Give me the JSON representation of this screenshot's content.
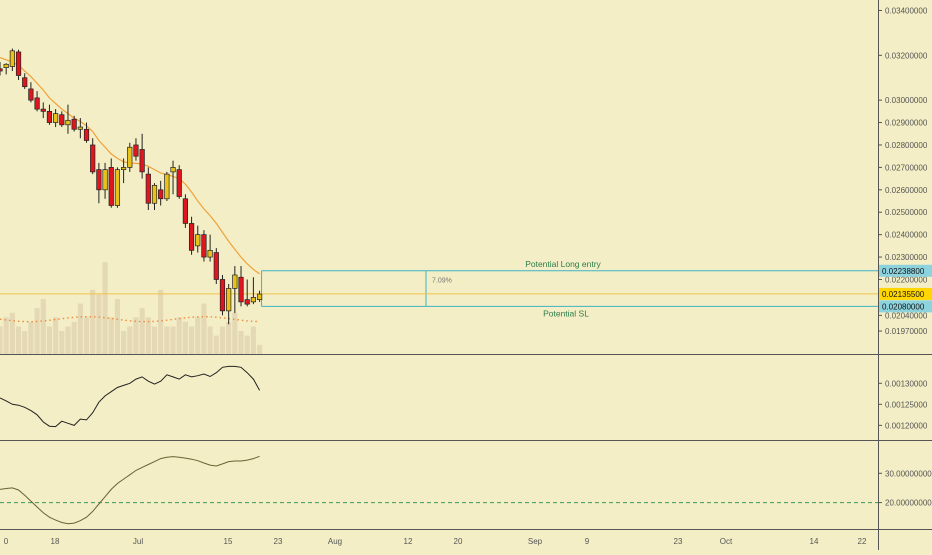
{
  "theme": {
    "background": "#f3eec5",
    "up": "#e8c21b",
    "down": "#e0161f",
    "wick": "#222222",
    "ma": "#f0a23a",
    "volume": "#e2d5b2",
    "zone_line": "#3db3c4",
    "price_badge": "#ffd600",
    "level_badge": "#8cd3de",
    "label_text": "#2e7d4a"
  },
  "chart_data": [
    {
      "type": "candlestick",
      "name": "price",
      "x_tick_labels": [
        "0",
        "18",
        "Jul",
        "15",
        "23",
        "Aug",
        "12",
        "20",
        "Sep",
        "9",
        "23",
        "Oct",
        "14",
        "22"
      ],
      "y_tick_labels": [
        "0.03400000",
        "0.03200000",
        "0.03000000",
        "0.02900000",
        "0.02800000",
        "0.02700000",
        "0.02600000",
        "0.02500000",
        "0.02400000",
        "0.02300000",
        "0.02200000",
        "0.02040000",
        "0.01970000"
      ],
      "ylim": [
        0.0193,
        0.0342
      ],
      "grid": false,
      "candles": [
        {
          "o": 0.0314,
          "h": 0.0317,
          "l": 0.0311,
          "c": 0.0313
        },
        {
          "o": 0.03145,
          "h": 0.03165,
          "l": 0.03115,
          "c": 0.0316
        },
        {
          "o": 0.0315,
          "h": 0.0323,
          "l": 0.0313,
          "c": 0.0322
        },
        {
          "o": 0.03215,
          "h": 0.03225,
          "l": 0.0309,
          "c": 0.0311
        },
        {
          "o": 0.031,
          "h": 0.0312,
          "l": 0.0305,
          "c": 0.0306
        },
        {
          "o": 0.0305,
          "h": 0.0308,
          "l": 0.0299,
          "c": 0.03
        },
        {
          "o": 0.0301,
          "h": 0.0304,
          "l": 0.0295,
          "c": 0.0296
        },
        {
          "o": 0.0296,
          "h": 0.0299,
          "l": 0.0292,
          "c": 0.0295
        },
        {
          "o": 0.0295,
          "h": 0.0298,
          "l": 0.0289,
          "c": 0.029
        },
        {
          "o": 0.029,
          "h": 0.0296,
          "l": 0.0288,
          "c": 0.0294
        },
        {
          "o": 0.02935,
          "h": 0.0295,
          "l": 0.0288,
          "c": 0.0289
        },
        {
          "o": 0.0289,
          "h": 0.0298,
          "l": 0.0285,
          "c": 0.0291
        },
        {
          "o": 0.02915,
          "h": 0.0293,
          "l": 0.0286,
          "c": 0.0287
        },
        {
          "o": 0.0287,
          "h": 0.0292,
          "l": 0.0283,
          "c": 0.0288
        },
        {
          "o": 0.0287,
          "h": 0.029,
          "l": 0.0281,
          "c": 0.0282
        },
        {
          "o": 0.028,
          "h": 0.0283,
          "l": 0.0267,
          "c": 0.0268
        },
        {
          "o": 0.0269,
          "h": 0.0272,
          "l": 0.0254,
          "c": 0.026
        },
        {
          "o": 0.026,
          "h": 0.0272,
          "l": 0.0256,
          "c": 0.0269
        },
        {
          "o": 0.027,
          "h": 0.0274,
          "l": 0.0252,
          "c": 0.0253
        },
        {
          "o": 0.0253,
          "h": 0.027,
          "l": 0.0252,
          "c": 0.0269
        },
        {
          "o": 0.0269,
          "h": 0.0274,
          "l": 0.0263,
          "c": 0.027
        },
        {
          "o": 0.027,
          "h": 0.0281,
          "l": 0.0268,
          "c": 0.0279
        },
        {
          "o": 0.028,
          "h": 0.0283,
          "l": 0.0273,
          "c": 0.0275
        },
        {
          "o": 0.0278,
          "h": 0.0285,
          "l": 0.0265,
          "c": 0.0268
        },
        {
          "o": 0.0267,
          "h": 0.027,
          "l": 0.0251,
          "c": 0.0254
        },
        {
          "o": 0.0254,
          "h": 0.0263,
          "l": 0.0251,
          "c": 0.0262
        },
        {
          "o": 0.026,
          "h": 0.0264,
          "l": 0.0253,
          "c": 0.0256
        },
        {
          "o": 0.0256,
          "h": 0.0268,
          "l": 0.0255,
          "c": 0.0267
        },
        {
          "o": 0.0268,
          "h": 0.0273,
          "l": 0.0258,
          "c": 0.027
        },
        {
          "o": 0.0269,
          "h": 0.0271,
          "l": 0.0256,
          "c": 0.0257
        },
        {
          "o": 0.0256,
          "h": 0.0258,
          "l": 0.0243,
          "c": 0.0245
        },
        {
          "o": 0.0245,
          "h": 0.0248,
          "l": 0.0231,
          "c": 0.0233
        },
        {
          "o": 0.0235,
          "h": 0.0244,
          "l": 0.0232,
          "c": 0.024
        },
        {
          "o": 0.024,
          "h": 0.0242,
          "l": 0.0228,
          "c": 0.023
        },
        {
          "o": 0.023,
          "h": 0.024,
          "l": 0.0228,
          "c": 0.0233
        },
        {
          "o": 0.0232,
          "h": 0.0234,
          "l": 0.0218,
          "c": 0.022
        },
        {
          "o": 0.022,
          "h": 0.0222,
          "l": 0.0204,
          "c": 0.0206
        },
        {
          "o": 0.0206,
          "h": 0.0218,
          "l": 0.02,
          "c": 0.0216
        },
        {
          "o": 0.0216,
          "h": 0.0226,
          "l": 0.0205,
          "c": 0.0222
        },
        {
          "o": 0.0221,
          "h": 0.0226,
          "l": 0.0208,
          "c": 0.021
        },
        {
          "o": 0.0211,
          "h": 0.022,
          "l": 0.0208,
          "c": 0.0209
        },
        {
          "o": 0.021,
          "h": 0.0221,
          "l": 0.0209,
          "c": 0.0212
        },
        {
          "o": 0.0211,
          "h": 0.0215,
          "l": 0.021,
          "c": 0.02135
        }
      ],
      "moving_average": [
        0.0319,
        0.0318,
        0.0317,
        0.03155,
        0.0313,
        0.03105,
        0.03075,
        0.03045,
        0.0301,
        0.02985,
        0.0296,
        0.0294,
        0.0292,
        0.02905,
        0.02885,
        0.0286,
        0.0282,
        0.0279,
        0.0276,
        0.0274,
        0.02725,
        0.0272,
        0.02718,
        0.02715,
        0.02705,
        0.0269,
        0.02675,
        0.02668,
        0.0266,
        0.0265,
        0.02625,
        0.0259,
        0.0255,
        0.02515,
        0.02485,
        0.0245,
        0.0241,
        0.0237,
        0.02335,
        0.023,
        0.0227,
        0.02245,
        0.02225
      ],
      "volume": [
        3,
        4,
        4.5,
        3,
        2.5,
        3.5,
        5,
        6,
        3,
        4,
        2.5,
        3,
        3.5,
        5.5,
        4,
        7,
        6.5,
        10,
        4,
        6,
        2.5,
        3,
        4,
        5,
        4,
        3,
        7,
        3,
        3,
        4,
        3.5,
        3,
        4,
        5.5,
        3,
        2,
        3,
        3.5,
        4.5,
        2.5,
        2,
        3,
        1
      ],
      "volume_ma_value": 3.8,
      "last_price_label": "0.02135500",
      "last_price": 0.021355,
      "annotations": {
        "long_entry": {
          "value": 0.022388,
          "badge": "0.02238800",
          "text": "Potential Long entry"
        },
        "stop_loss": {
          "value": 0.0208,
          "badge": "0.02080000",
          "text": "Potential SL"
        },
        "range_pct": "7.09%"
      }
    },
    {
      "type": "line",
      "name": "indicator-1",
      "y_tick_labels": [
        "0.00130000",
        "0.00125000",
        "0.00120000"
      ],
      "y_tick_values": [
        0.0013,
        0.00125,
        0.0012
      ],
      "ylim": [
        0.00117,
        0.00136
      ],
      "values": [
        0.001265,
        0.001258,
        0.00125,
        0.001248,
        0.001243,
        0.001235,
        0.001225,
        0.001208,
        0.001198,
        0.001197,
        0.00121,
        0.001205,
        0.0012,
        0.001215,
        0.001213,
        0.00123,
        0.001255,
        0.00127,
        0.00128,
        0.00129,
        0.001295,
        0.0013,
        0.00131,
        0.001315,
        0.001305,
        0.001298,
        0.001305,
        0.00132,
        0.001315,
        0.00131,
        0.00132,
        0.001315,
        0.001318,
        0.001322,
        0.001316,
        0.001325,
        0.001338,
        0.00134,
        0.00134,
        0.001338,
        0.001325,
        0.00131,
        0.001283
      ]
    },
    {
      "type": "line",
      "name": "indicator-2",
      "y_tick_labels": [
        "30.00000000",
        "20.00000000"
      ],
      "y_tick_values": [
        30,
        20
      ],
      "ylim": [
        12,
        40
      ],
      "reference_line": 20,
      "values": [
        24.5,
        24.8,
        25.0,
        24.3,
        22.5,
        20.5,
        18.5,
        16.5,
        15.0,
        14.0,
        13.2,
        12.8,
        13.0,
        13.8,
        15.0,
        17.0,
        19.5,
        22.0,
        24.5,
        26.5,
        28.0,
        29.5,
        31.0,
        32.0,
        33.0,
        34.0,
        35.0,
        35.5,
        35.7,
        35.5,
        35.2,
        34.8,
        34.3,
        33.5,
        32.8,
        32.5,
        33.2,
        34.0,
        34.2,
        34.2,
        34.5,
        35.0,
        35.8
      ]
    }
  ]
}
